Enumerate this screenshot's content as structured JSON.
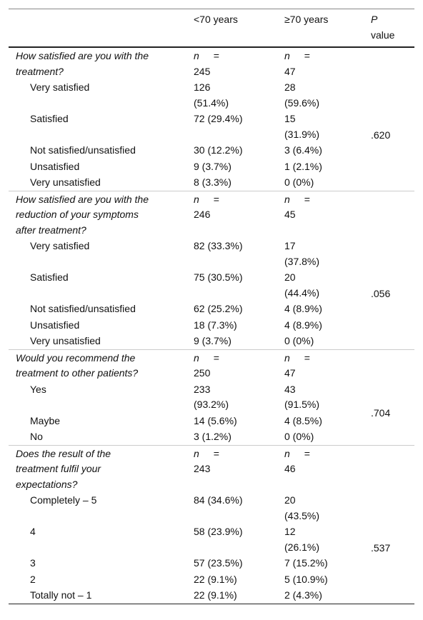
{
  "header": {
    "columns": [
      "<70 years",
      "≥70 years"
    ],
    "p_symbol": "P",
    "p_word": "value"
  },
  "n_symbol": "n",
  "equals": "=",
  "groups": [
    {
      "question": "How satisfied are you with the treatment?",
      "n": [
        245,
        47
      ],
      "p_value": ".620",
      "rows": [
        [
          "Very satisfied",
          "126 (51.4%)",
          "28 (59.6%)"
        ],
        [
          "Satisfied",
          "72 (29.4%)",
          "15 (31.9%)"
        ],
        [
          "Not satisfied/unsatisfied",
          "30 (12.2%)",
          "3 (6.4%)"
        ],
        [
          "Unsatisfied",
          "9 (3.7%)",
          "1 (2.1%)"
        ],
        [
          "Very unsatisfied",
          "8 (3.3%)",
          "0 (0%)"
        ]
      ]
    },
    {
      "question": "How satisfied are you with the reduction of your symptoms after treatment?",
      "n": [
        246,
        45
      ],
      "p_value": ".056",
      "rows": [
        [
          "Very satisfied",
          "82 (33.3%)",
          "17 (37.8%)"
        ],
        [
          "Satisfied",
          "75 (30.5%)",
          "20 (44.4%)"
        ],
        [
          "Not satisfied/unsatisfied",
          "62 (25.2%)",
          "4 (8.9%)"
        ],
        [
          "Unsatisfied",
          "18 (7.3%)",
          "4 (8.9%)"
        ],
        [
          "Very unsatisfied",
          "9 (3.7%)",
          "0 (0%)"
        ]
      ]
    },
    {
      "question": "Would you recommend the treatment to other patients?",
      "n": [
        250,
        47
      ],
      "p_value": ".704",
      "rows": [
        [
          "Yes",
          "233 (93.2%)",
          "43 (91.5%)"
        ],
        [
          "Maybe",
          "14 (5.6%)",
          "4 (8.5%)"
        ],
        [
          "No",
          "3 (1.2%)",
          "0 (0%)"
        ]
      ]
    },
    {
      "question": "Does the result of the treatment fulfil your expectations?",
      "n": [
        243,
        46
      ],
      "p_value": ".537",
      "rows": [
        [
          "Completely – 5",
          "84 (34.6%)",
          "20 (43.5%)"
        ],
        [
          "4",
          "58 (23.9%)",
          "12 (26.1%)"
        ],
        [
          "3",
          "57 (23.5%)",
          "7 (15.2%)"
        ],
        [
          "2",
          "22 (9.1%)",
          "5 (10.9%)"
        ],
        [
          "Totally not – 1",
          "22 (9.1%)",
          "2 (4.3%)"
        ]
      ]
    }
  ]
}
